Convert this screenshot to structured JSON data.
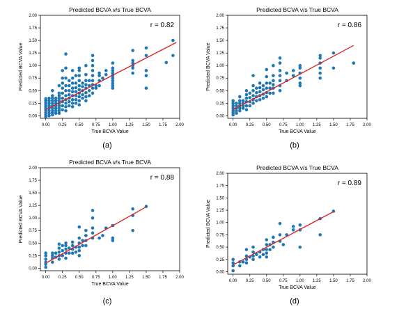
{
  "figure": {
    "colors": {
      "points": "#1f77b4",
      "fit_line": "#d62728",
      "axes": "#000000"
    }
  },
  "chart_data": [
    {
      "type": "scatter",
      "panel_label": "(a)",
      "title": "Predicted BCVA v/s True BCVA",
      "xlabel": "True BCVA Value",
      "ylabel": "Predicted BCVA Value",
      "xlim": [
        -0.08,
        2.0
      ],
      "ylim": [
        -0.05,
        2.0
      ],
      "xticks": [
        "0.00",
        "0.25",
        "0.50",
        "0.75",
        "1.00",
        "1.25",
        "1.50",
        "1.75",
        "2.00"
      ],
      "yticks": [
        "0.00",
        "0.25",
        "0.50",
        "0.75",
        "1.00",
        "1.25",
        "1.50",
        "1.75",
        "2.00"
      ],
      "annotation": "r = 0.82",
      "fit_line": {
        "x": [
          0.0,
          1.95
        ],
        "y": [
          0.12,
          1.46
        ]
      },
      "points": {
        "x": [
          0.0,
          0.0,
          0.0,
          0.0,
          0.0,
          0.0,
          0.0,
          0.0,
          0.0,
          0.0,
          0.05,
          0.05,
          0.05,
          0.05,
          0.05,
          0.05,
          0.05,
          0.05,
          0.1,
          0.1,
          0.1,
          0.1,
          0.1,
          0.1,
          0.1,
          0.1,
          0.1,
          0.1,
          0.15,
          0.15,
          0.15,
          0.15,
          0.15,
          0.15,
          0.15,
          0.2,
          0.2,
          0.2,
          0.2,
          0.2,
          0.2,
          0.2,
          0.2,
          0.2,
          0.2,
          0.25,
          0.25,
          0.25,
          0.25,
          0.25,
          0.25,
          0.25,
          0.25,
          0.25,
          0.3,
          0.3,
          0.3,
          0.3,
          0.3,
          0.3,
          0.3,
          0.3,
          0.3,
          0.3,
          0.35,
          0.35,
          0.35,
          0.35,
          0.35,
          0.35,
          0.35,
          0.4,
          0.4,
          0.4,
          0.4,
          0.4,
          0.4,
          0.4,
          0.4,
          0.4,
          0.45,
          0.45,
          0.45,
          0.45,
          0.45,
          0.45,
          0.45,
          0.5,
          0.5,
          0.5,
          0.5,
          0.5,
          0.5,
          0.5,
          0.5,
          0.5,
          0.5,
          0.55,
          0.55,
          0.55,
          0.55,
          0.55,
          0.6,
          0.6,
          0.6,
          0.6,
          0.6,
          0.6,
          0.6,
          0.6,
          0.65,
          0.65,
          0.65,
          0.65,
          0.7,
          0.7,
          0.7,
          0.7,
          0.7,
          0.7,
          0.7,
          0.7,
          0.7,
          0.75,
          0.75,
          0.8,
          0.8,
          0.8,
          0.8,
          0.85,
          0.9,
          0.9,
          1.0,
          1.0,
          1.0,
          1.0,
          1.0,
          1.0,
          1.0,
          1.0,
          1.0,
          1.0,
          1.3,
          1.3,
          1.3,
          1.3,
          1.3,
          1.3,
          1.5,
          1.5,
          1.5,
          1.5,
          1.5,
          1.8,
          1.9,
          1.9
        ],
        "y": [
          0.02,
          0.06,
          0.1,
          0.14,
          0.18,
          0.22,
          0.26,
          0.3,
          0.34,
          -0.02,
          0.0,
          0.05,
          0.1,
          0.15,
          0.2,
          0.25,
          0.3,
          0.35,
          0.02,
          0.06,
          0.1,
          0.15,
          0.2,
          0.25,
          0.3,
          0.35,
          0.4,
          0.5,
          0.05,
          0.1,
          0.15,
          0.2,
          0.25,
          0.3,
          0.35,
          0.05,
          0.1,
          0.15,
          0.2,
          0.25,
          0.3,
          0.35,
          0.4,
          0.45,
          0.6,
          0.12,
          0.2,
          0.28,
          0.35,
          0.45,
          0.55,
          0.65,
          0.75,
          0.9,
          0.1,
          0.18,
          0.25,
          0.32,
          0.4,
          0.5,
          0.6,
          0.75,
          0.95,
          1.23,
          0.2,
          0.28,
          0.35,
          0.42,
          0.5,
          0.6,
          0.7,
          0.18,
          0.25,
          0.32,
          0.4,
          0.48,
          0.55,
          0.65,
          0.75,
          0.9,
          0.25,
          0.32,
          0.4,
          0.48,
          0.56,
          0.65,
          0.8,
          0.22,
          0.3,
          0.38,
          0.45,
          0.52,
          0.6,
          0.7,
          0.8,
          0.9,
          0.95,
          0.35,
          0.42,
          0.5,
          0.58,
          0.65,
          0.3,
          0.38,
          0.46,
          0.55,
          0.62,
          0.7,
          0.82,
          1.0,
          0.4,
          0.5,
          0.6,
          0.7,
          0.45,
          0.55,
          0.62,
          0.7,
          0.8,
          0.9,
          1.0,
          1.1,
          1.2,
          0.55,
          0.6,
          0.6,
          0.7,
          0.8,
          0.85,
          0.75,
          0.82,
          0.9,
          0.55,
          0.6,
          0.65,
          0.7,
          0.75,
          0.8,
          0.85,
          0.9,
          0.95,
          1.05,
          0.85,
          0.95,
          1.0,
          1.05,
          1.1,
          1.3,
          0.55,
          0.8,
          0.9,
          1.2,
          1.35,
          1.06,
          1.2,
          1.5
        ]
      }
    },
    {
      "type": "scatter",
      "panel_label": "(b)",
      "title": "Predicted BCVA v/s True BCVA",
      "xlabel": "True BCVA Value",
      "ylabel": "Predicted BCVA Value",
      "xlim": [
        -0.08,
        2.0
      ],
      "ylim": [
        -0.05,
        2.0
      ],
      "xticks": [
        "0.00",
        "0.25",
        "0.50",
        "0.75",
        "1.00",
        "1.25",
        "1.50",
        "1.75",
        "2.00"
      ],
      "yticks": [
        "0.00",
        "0.25",
        "0.50",
        "0.75",
        "1.00",
        "1.25",
        "1.50",
        "1.75",
        "2.00"
      ],
      "annotation": "r = 0.86",
      "fit_line": {
        "x": [
          0.0,
          1.8
        ],
        "y": [
          0.12,
          1.4
        ]
      },
      "points": {
        "x": [
          0.0,
          0.0,
          0.0,
          0.0,
          0.0,
          0.0,
          0.0,
          0.05,
          0.05,
          0.05,
          0.05,
          0.05,
          0.1,
          0.1,
          0.1,
          0.1,
          0.1,
          0.1,
          0.15,
          0.15,
          0.15,
          0.15,
          0.2,
          0.2,
          0.2,
          0.2,
          0.2,
          0.2,
          0.25,
          0.25,
          0.25,
          0.25,
          0.3,
          0.3,
          0.3,
          0.3,
          0.3,
          0.3,
          0.35,
          0.35,
          0.35,
          0.35,
          0.4,
          0.4,
          0.4,
          0.4,
          0.4,
          0.45,
          0.45,
          0.45,
          0.45,
          0.5,
          0.5,
          0.5,
          0.5,
          0.5,
          0.5,
          0.55,
          0.55,
          0.55,
          0.6,
          0.6,
          0.6,
          0.6,
          0.6,
          0.6,
          0.7,
          0.7,
          0.7,
          0.7,
          0.7,
          0.7,
          0.7,
          0.8,
          0.8,
          0.9,
          0.9,
          1.0,
          1.0,
          1.0,
          1.0,
          1.0,
          1.0,
          1.3,
          1.3,
          1.3,
          1.3,
          1.3,
          1.3,
          1.5,
          1.5,
          1.8
        ],
        "y": [
          0.02,
          0.06,
          0.1,
          0.15,
          0.2,
          0.25,
          0.3,
          0.05,
          0.1,
          0.15,
          0.2,
          0.25,
          0.1,
          0.15,
          0.2,
          0.25,
          0.3,
          0.38,
          0.15,
          0.2,
          0.25,
          0.3,
          0.12,
          0.2,
          0.28,
          0.35,
          0.42,
          0.5,
          0.2,
          0.28,
          0.36,
          0.45,
          0.25,
          0.32,
          0.4,
          0.5,
          0.6,
          0.8,
          0.3,
          0.38,
          0.46,
          0.55,
          0.32,
          0.4,
          0.48,
          0.56,
          0.65,
          0.35,
          0.43,
          0.52,
          0.6,
          0.38,
          0.46,
          0.55,
          0.65,
          0.78,
          0.92,
          0.45,
          0.55,
          0.65,
          0.45,
          0.55,
          0.62,
          0.7,
          0.8,
          1.0,
          0.5,
          0.6,
          0.7,
          0.8,
          0.9,
          1.05,
          1.15,
          0.7,
          0.85,
          0.8,
          0.9,
          0.6,
          0.65,
          0.75,
          0.85,
          0.95,
          1.0,
          0.75,
          0.85,
          0.95,
          1.05,
          1.15,
          1.2,
          0.95,
          1.25,
          1.05
        ]
      }
    },
    {
      "type": "scatter",
      "panel_label": "(c)",
      "title": "Predicted BCVA v/s True BCVA",
      "xlabel": "True BCVA Value",
      "ylabel": "Predicted BCVA Value",
      "xlim": [
        -0.08,
        2.0
      ],
      "ylim": [
        -0.05,
        2.0
      ],
      "xticks": [
        "0.00",
        "0.25",
        "0.50",
        "0.75",
        "1.00",
        "1.25",
        "1.50",
        "1.75",
        "2.00"
      ],
      "yticks": [
        "0.00",
        "0.25",
        "0.50",
        "0.75",
        "1.00",
        "1.25",
        "1.50",
        "1.75",
        "2.00"
      ],
      "annotation": "r = 0.88",
      "fit_line": {
        "x": [
          0.0,
          1.5
        ],
        "y": [
          0.1,
          1.22
        ]
      },
      "points": {
        "x": [
          0.0,
          0.0,
          0.0,
          0.0,
          0.0,
          0.0,
          0.1,
          0.1,
          0.1,
          0.1,
          0.15,
          0.15,
          0.2,
          0.2,
          0.2,
          0.2,
          0.2,
          0.25,
          0.25,
          0.25,
          0.3,
          0.3,
          0.3,
          0.3,
          0.3,
          0.35,
          0.35,
          0.4,
          0.4,
          0.4,
          0.4,
          0.45,
          0.45,
          0.5,
          0.5,
          0.5,
          0.5,
          0.5,
          0.5,
          0.55,
          0.55,
          0.6,
          0.6,
          0.6,
          0.6,
          0.7,
          0.7,
          0.7,
          0.7,
          0.7,
          0.8,
          0.85,
          0.9,
          1.0,
          1.0,
          1.0,
          1.3,
          1.3,
          1.3,
          1.5
        ],
        "y": [
          0.02,
          0.08,
          0.12,
          0.18,
          0.25,
          0.3,
          0.12,
          0.2,
          0.25,
          0.3,
          0.22,
          0.3,
          0.18,
          0.25,
          0.32,
          0.4,
          0.48,
          0.25,
          0.35,
          0.45,
          0.2,
          0.3,
          0.38,
          0.45,
          0.5,
          0.3,
          0.4,
          0.3,
          0.38,
          0.45,
          0.52,
          0.32,
          0.42,
          0.25,
          0.35,
          0.42,
          0.5,
          0.6,
          0.82,
          0.45,
          0.55,
          0.45,
          0.55,
          0.65,
          0.75,
          0.6,
          0.7,
          0.8,
          1.0,
          1.15,
          0.6,
          0.65,
          0.8,
          0.55,
          0.6,
          0.85,
          0.75,
          1.05,
          1.18,
          1.23
        ]
      }
    },
    {
      "type": "scatter",
      "panel_label": "(d)",
      "title": "Predicted BCVA v/s True BCVA",
      "xlabel": "True BCVA Value",
      "ylabel": "Predicted BCVA Value",
      "xlim": [
        -0.08,
        2.0
      ],
      "ylim": [
        -0.05,
        2.0
      ],
      "xticks": [
        "0.00",
        "0.25",
        "0.50",
        "0.75",
        "1.00",
        "1.25",
        "1.50",
        "1.75",
        "2.00"
      ],
      "yticks": [
        "0.00",
        "0.25",
        "0.50",
        "0.75",
        "1.00",
        "1.25",
        "1.50",
        "1.75",
        "2.00"
      ],
      "annotation": "r = 0.89",
      "fit_line": {
        "x": [
          0.0,
          1.5
        ],
        "y": [
          0.14,
          1.22
        ]
      },
      "points": {
        "x": [
          0.0,
          0.0,
          0.0,
          0.0,
          0.1,
          0.1,
          0.15,
          0.2,
          0.2,
          0.2,
          0.2,
          0.25,
          0.3,
          0.3,
          0.3,
          0.3,
          0.35,
          0.4,
          0.4,
          0.45,
          0.45,
          0.5,
          0.5,
          0.5,
          0.5,
          0.5,
          0.55,
          0.55,
          0.6,
          0.6,
          0.6,
          0.7,
          0.7,
          0.7,
          0.75,
          0.8,
          0.9,
          0.9,
          1.0,
          1.0,
          1.0,
          1.3,
          1.3,
          1.5
        ],
        "y": [
          0.02,
          0.12,
          0.18,
          0.25,
          0.12,
          0.2,
          0.2,
          0.18,
          0.25,
          0.32,
          0.45,
          0.3,
          0.25,
          0.32,
          0.4,
          0.5,
          0.35,
          0.3,
          0.4,
          0.35,
          0.45,
          0.3,
          0.38,
          0.45,
          0.55,
          0.65,
          0.45,
          0.55,
          0.5,
          0.6,
          0.7,
          0.62,
          0.75,
          0.98,
          0.55,
          0.75,
          0.85,
          0.92,
          0.5,
          0.85,
          0.95,
          0.75,
          1.08,
          1.23
        ]
      }
    }
  ]
}
